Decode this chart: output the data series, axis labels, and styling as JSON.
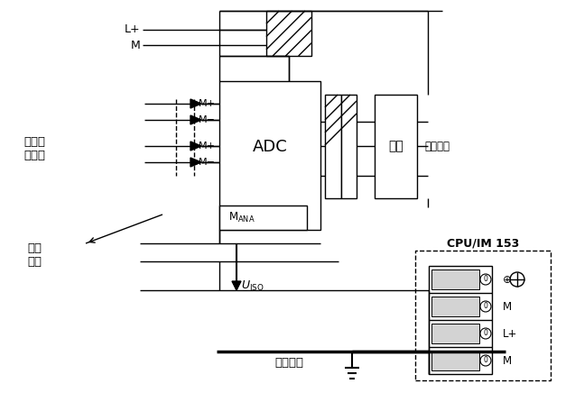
{
  "bg_color": "#ffffff",
  "figsize": [
    6.37,
    4.46
  ],
  "dpi": 100,
  "labels": {
    "L_plus": "L+",
    "M_top": "M",
    "ADC": "ADC",
    "logic": "逻辑",
    "backplane": "背板总线",
    "cpu": "CPU/IM 153",
    "iso_sensor": "电隔离\n传感器",
    "recommend": "推荐\n连接",
    "ground": "接地干线"
  }
}
